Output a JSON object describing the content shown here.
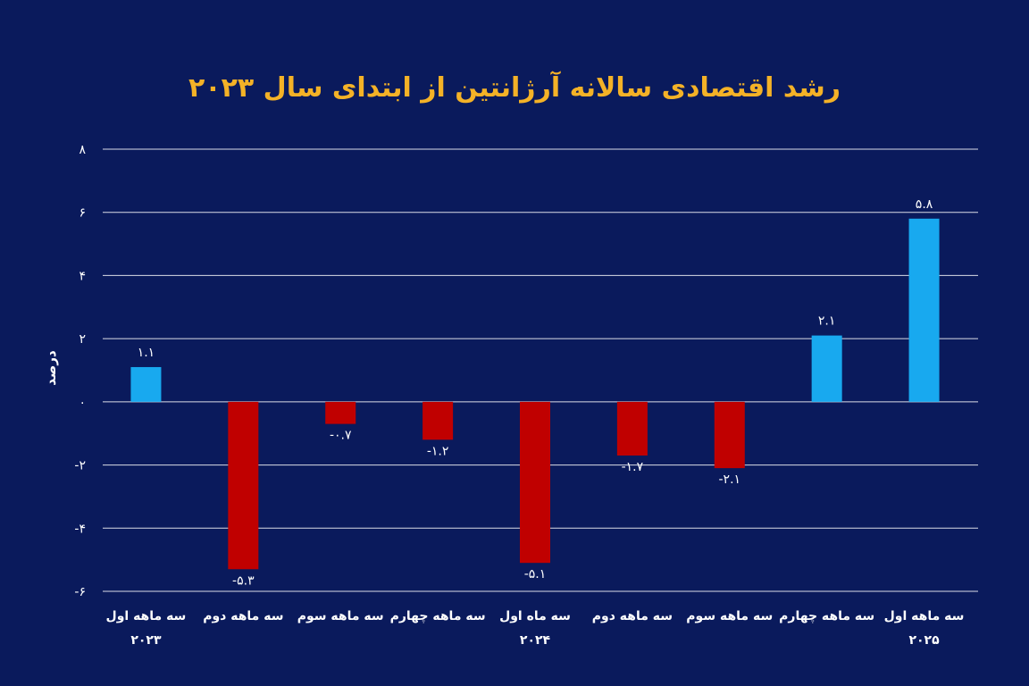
{
  "chart_data": {
    "type": "bar",
    "title": "رشد اقتصادی سالانه آرژانتین از ابتدای سال ۲۰۲۳",
    "ylabel": "درصد",
    "xlabel": "",
    "ylim": [
      -6,
      8
    ],
    "yticks": [
      {
        "value": 8,
        "label": "۸"
      },
      {
        "value": 6,
        "label": "۶"
      },
      {
        "value": 4,
        "label": "۴"
      },
      {
        "value": 2,
        "label": "۲"
      },
      {
        "value": 0,
        "label": "۰"
      },
      {
        "value": -2,
        "label": "-۲"
      },
      {
        "value": -4,
        "label": "-۴"
      },
      {
        "value": -6,
        "label": "-۶"
      }
    ],
    "grid": true,
    "legend": "none",
    "categories": [
      [
        "سه ماهه اول",
        "۲۰۲۳"
      ],
      [
        "سه ماهه دوم",
        ""
      ],
      [
        "سه ماهه سوم",
        ""
      ],
      [
        "سه ماهه چهارم",
        ""
      ],
      [
        "سه ماه اول",
        "۲۰۲۴"
      ],
      [
        "سه ماهه دوم",
        ""
      ],
      [
        "سه ماهه سوم",
        ""
      ],
      [
        "سه ماهه چهارم",
        ""
      ],
      [
        "سه ماهه اول",
        "۲۰۲۵"
      ]
    ],
    "values": [
      1.1,
      -5.3,
      -0.7,
      -1.2,
      -5.1,
      -1.7,
      -2.1,
      2.1,
      5.8
    ],
    "value_labels": [
      "۱.۱",
      "-۵.۳",
      "-۰.۷",
      "-۱.۲",
      "-۵.۱",
      "-۱.۷",
      "-۲.۱",
      "۲.۱",
      "۵.۸"
    ],
    "colors": {
      "background": "#0a1a5c",
      "positive": "#18a9ef",
      "negative": "#c00000",
      "title": "#f4b227",
      "grid": "#ffffff",
      "text": "#ffffff"
    }
  }
}
